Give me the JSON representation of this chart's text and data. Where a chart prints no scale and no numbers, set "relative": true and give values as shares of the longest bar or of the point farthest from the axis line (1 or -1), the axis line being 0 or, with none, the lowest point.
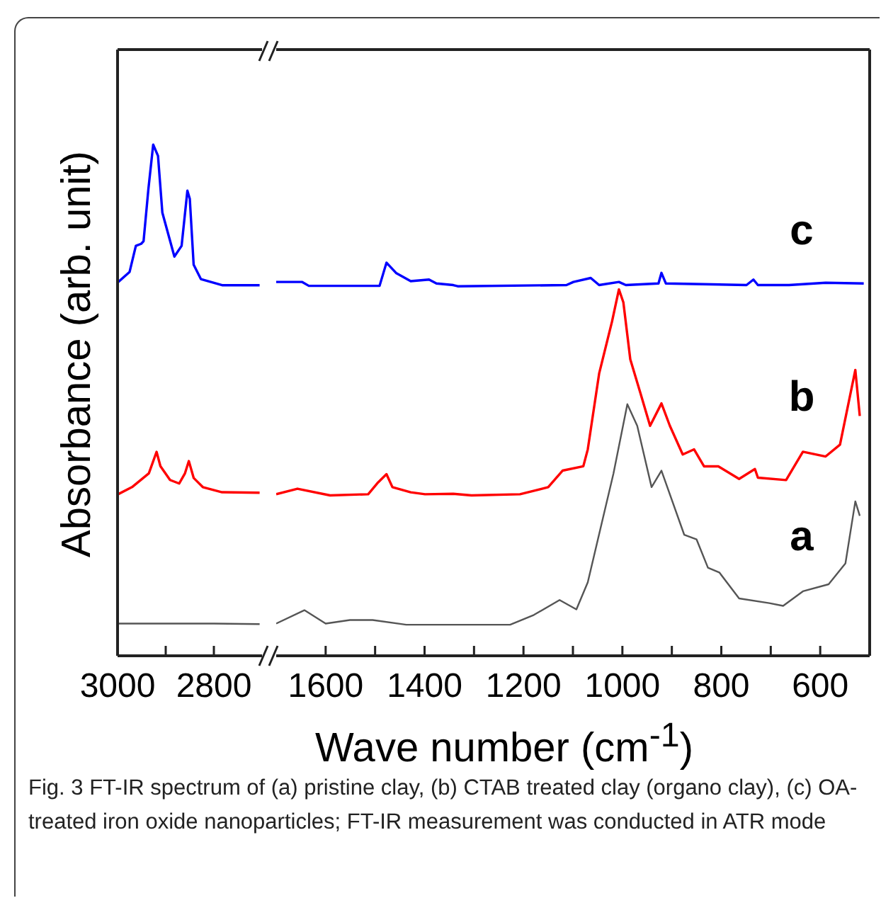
{
  "chart_data": [
    {
      "type": "line",
      "relative": true,
      "ylabel": "Absorbance (arb. unit)",
      "xlim": [
        3000,
        2700
      ],
      "xticks": [
        3000,
        {
          "value": 2900,
          "label": null
        },
        2800
      ],
      "grid": false,
      "legend": false,
      "series": [
        {
          "color": "#0000ff",
          "x": [
            2999,
            2975,
            2962,
            2951,
            2946,
            2936,
            2926,
            2916,
            2907,
            2882,
            2867,
            2855,
            2850,
            2842,
            2827,
            2783,
            2705
          ],
          "values": [
            0.731,
            0.751,
            0.802,
            0.806,
            0.811,
            0.913,
            1.0,
            0.978,
            0.867,
            0.781,
            0.802,
            0.91,
            0.894,
            0.765,
            0.737,
            0.725,
            0.725
          ]
        },
        {
          "color": "#ff0000",
          "x": [
            2999,
            2970,
            2935,
            2919,
            2911,
            2891,
            2872,
            2860,
            2852,
            2842,
            2823,
            2783,
            2705
          ],
          "values": [
            0.316,
            0.33,
            0.357,
            0.399,
            0.371,
            0.344,
            0.337,
            0.357,
            0.381,
            0.348,
            0.33,
            0.32,
            0.319
          ]
        },
        {
          "color": "#555555",
          "x": [
            3000,
            2800,
            2705
          ],
          "values": [
            0.063,
            0.063,
            0.062
          ]
        }
      ]
    },
    {
      "type": "line",
      "relative": true,
      "xlabel": "Wave number (cm$^{-1}$)",
      "xlim": [
        1700,
        500
      ],
      "xticks": [
        1600,
        {
          "value": 1500,
          "label": null
        },
        1400,
        {
          "value": 1300,
          "label": null
        },
        1200,
        {
          "value": 1100,
          "label": null
        },
        1000,
        {
          "value": 900,
          "label": null
        },
        800,
        {
          "value": 700,
          "label": null
        },
        600
      ],
      "grid": false,
      "legend": false,
      "annotations": [
        "Fig. 3  FT-IR spectrum of (a) pristine clay, (b) CTAB treated clay (organo clay), (c) OA-treated iron oxide nanoparticles; FT-IR measurement was conducted in ATR mode"
      ],
      "series": [
        {
          "name": "c",
          "color": "#0000ff",
          "x": [
            1700,
            1648,
            1634,
            1491,
            1477,
            1457,
            1428,
            1391,
            1376,
            1342,
            1333,
            1113,
            1099,
            1064,
            1047,
            1007,
            993,
            927,
            921,
            912,
            749,
            735,
            726,
            663,
            589,
            512
          ],
          "values": [
            0.951,
            0.951,
            0.941,
            0.941,
            1.0,
            0.973,
            0.953,
            0.957,
            0.947,
            0.943,
            0.94,
            0.943,
            0.951,
            0.961,
            0.943,
            0.951,
            0.943,
            0.947,
            0.974,
            0.947,
            0.943,
            0.957,
            0.943,
            0.943,
            0.949,
            0.947
          ]
        },
        {
          "name": "b",
          "color": "#ff0000",
          "x": [
            1700,
            1657,
            1591,
            1514,
            1494,
            1477,
            1465,
            1428,
            1399,
            1342,
            1305,
            1207,
            1150,
            1121,
            1079,
            1070,
            1047,
            1021,
            1007,
            998,
            984,
            964,
            944,
            921,
            904,
            878,
            855,
            835,
            806,
            764,
            732,
            726,
            669,
            635,
            589,
            560,
            529,
            520
          ],
          "values": [
            0.411,
            0.425,
            0.408,
            0.411,
            0.441,
            0.462,
            0.429,
            0.416,
            0.411,
            0.412,
            0.408,
            0.411,
            0.429,
            0.471,
            0.482,
            0.525,
            0.718,
            0.85,
            0.932,
            0.899,
            0.754,
            0.67,
            0.585,
            0.642,
            0.585,
            0.512,
            0.525,
            0.482,
            0.482,
            0.45,
            0.475,
            0.453,
            0.447,
            0.519,
            0.507,
            0.537,
            0.727,
            0.61
          ]
        },
        {
          "name": "a",
          "color": "#555555",
          "x": [
            1700,
            1643,
            1600,
            1551,
            1505,
            1437,
            1342,
            1227,
            1179,
            1127,
            1093,
            1070,
            1018,
            990,
            970,
            941,
            921,
            875,
            850,
            827,
            804,
            764,
            703,
            675,
            635,
            583,
            549,
            529,
            520
          ],
          "values": [
            0.082,
            0.116,
            0.082,
            0.091,
            0.091,
            0.079,
            0.079,
            0.079,
            0.104,
            0.142,
            0.118,
            0.187,
            0.464,
            0.64,
            0.585,
            0.429,
            0.471,
            0.308,
            0.296,
            0.224,
            0.212,
            0.146,
            0.134,
            0.127,
            0.164,
            0.182,
            0.235,
            0.393,
            0.356
          ]
        }
      ]
    }
  ]
}
